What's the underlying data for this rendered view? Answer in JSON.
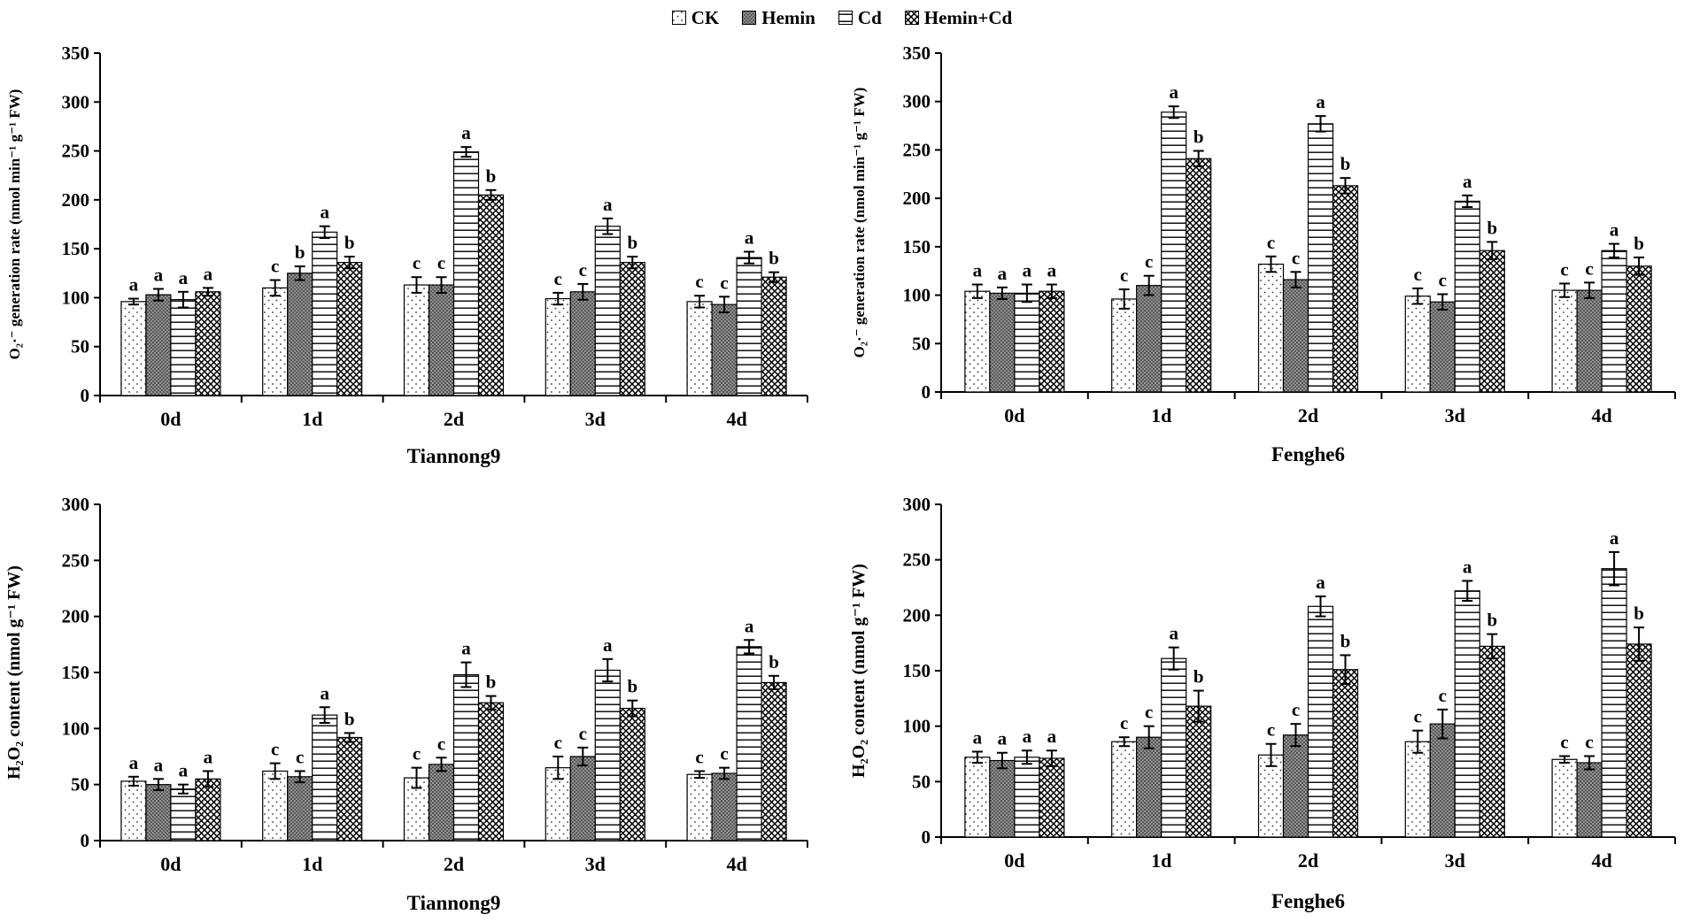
{
  "legend": [
    {
      "label": "CK",
      "pattern": "dots"
    },
    {
      "label": "Hemin",
      "pattern": "dense-dots"
    },
    {
      "label": "Cd",
      "pattern": "horizontal-lines"
    },
    {
      "label": "Hemin+Cd",
      "pattern": "crosshatch"
    }
  ],
  "chart_data": [
    {
      "type": "bar",
      "title": "",
      "xlabel": "Tiannong9",
      "ylabel": "O₂·⁻ generation rate (nmol min⁻¹ g⁻¹ FW)",
      "categories": [
        "0d",
        "1d",
        "2d",
        "3d",
        "4d"
      ],
      "ylim": [
        0,
        350
      ],
      "yticks": [
        0,
        50,
        100,
        150,
        200,
        250,
        300,
        350
      ],
      "series": [
        {
          "name": "CK",
          "values": [
            96,
            110,
            113,
            99,
            96
          ],
          "errors": [
            3,
            8,
            8,
            6,
            6
          ],
          "letters": [
            "a",
            "c",
            "c",
            "c",
            "c"
          ]
        },
        {
          "name": "Hemin",
          "values": [
            103,
            125,
            113,
            106,
            93
          ],
          "errors": [
            6,
            7,
            8,
            8,
            8
          ],
          "letters": [
            "a",
            "b",
            "c",
            "c",
            "c"
          ]
        },
        {
          "name": "Cd",
          "values": [
            98,
            167,
            249,
            173,
            141
          ],
          "errors": [
            8,
            6,
            5,
            8,
            6
          ],
          "letters": [
            "a",
            "a",
            "a",
            "a",
            "a"
          ]
        },
        {
          "name": "Hemin+Cd",
          "values": [
            106,
            136,
            205,
            136,
            121
          ],
          "errors": [
            4,
            6,
            5,
            6,
            5
          ],
          "letters": [
            "a",
            "b",
            "b",
            "b",
            "b"
          ]
        }
      ]
    },
    {
      "type": "bar",
      "title": "",
      "xlabel": "Fenghe6",
      "ylabel": "O₂·⁻ generation rate (nmol min⁻¹ g⁻¹ FW)",
      "categories": [
        "0d",
        "1d",
        "2d",
        "3d",
        "4d"
      ],
      "ylim": [
        0,
        350
      ],
      "yticks": [
        0,
        50,
        100,
        150,
        200,
        250,
        300,
        350
      ],
      "series": [
        {
          "name": "CK",
          "values": [
            104,
            96,
            132,
            99,
            105
          ],
          "errors": [
            7,
            10,
            8,
            8,
            7
          ],
          "letters": [
            "a",
            "c",
            "c",
            "c",
            "c"
          ]
        },
        {
          "name": "Hemin",
          "values": [
            102,
            110,
            116,
            93,
            105
          ],
          "errors": [
            6,
            10,
            8,
            8,
            8
          ],
          "letters": [
            "a",
            "c",
            "c",
            "c",
            "c"
          ]
        },
        {
          "name": "Cd",
          "values": [
            102,
            289,
            277,
            197,
            146
          ],
          "errors": [
            9,
            6,
            8,
            6,
            7
          ],
          "letters": [
            "a",
            "a",
            "a",
            "a",
            "a"
          ]
        },
        {
          "name": "Hemin+Cd",
          "values": [
            104,
            241,
            213,
            146,
            130
          ],
          "errors": [
            7,
            8,
            8,
            9,
            9
          ],
          "letters": [
            "a",
            "b",
            "b",
            "b",
            "b"
          ]
        }
      ]
    },
    {
      "type": "bar",
      "title": "",
      "xlabel": "Tiannong9",
      "ylabel": "H₂O₂ content (nmol g⁻¹ FW)",
      "categories": [
        "0d",
        "1d",
        "2d",
        "3d",
        "4d"
      ],
      "ylim": [
        0,
        300
      ],
      "yticks": [
        0,
        50,
        100,
        150,
        200,
        250,
        300
      ],
      "series": [
        {
          "name": "CK",
          "values": [
            53,
            62,
            56,
            65,
            59
          ],
          "errors": [
            4,
            7,
            9,
            10,
            3
          ],
          "letters": [
            "a",
            "c",
            "c",
            "c",
            "c"
          ]
        },
        {
          "name": "Hemin",
          "values": [
            50,
            57,
            68,
            75,
            60
          ],
          "errors": [
            5,
            5,
            6,
            8,
            5
          ],
          "letters": [
            "a",
            "c",
            "c",
            "c",
            "c"
          ]
        },
        {
          "name": "Cd",
          "values": [
            46,
            112,
            148,
            152,
            173
          ],
          "errors": [
            4,
            7,
            11,
            10,
            6
          ],
          "letters": [
            "a",
            "a",
            "a",
            "a",
            "a"
          ]
        },
        {
          "name": "Hemin+Cd",
          "values": [
            55,
            92,
            123,
            118,
            141
          ],
          "errors": [
            7,
            4,
            6,
            7,
            6
          ],
          "letters": [
            "a",
            "b",
            "b",
            "b",
            "b"
          ]
        }
      ]
    },
    {
      "type": "bar",
      "title": "",
      "xlabel": "Fenghe6",
      "ylabel": "H₂O₂ content (nmol g⁻¹ FW)",
      "categories": [
        "0d",
        "1d",
        "2d",
        "3d",
        "4d"
      ],
      "ylim": [
        0,
        300
      ],
      "yticks": [
        0,
        50,
        100,
        150,
        200,
        250,
        300
      ],
      "series": [
        {
          "name": "CK",
          "values": [
            72,
            86,
            74,
            86,
            70
          ],
          "errors": [
            5,
            4,
            10,
            10,
            3
          ],
          "letters": [
            "a",
            "c",
            "c",
            "c",
            "c"
          ]
        },
        {
          "name": "Hemin",
          "values": [
            69,
            90,
            92,
            102,
            67
          ],
          "errors": [
            7,
            10,
            10,
            13,
            6
          ],
          "letters": [
            "a",
            "c",
            "c",
            "c",
            "c"
          ]
        },
        {
          "name": "Cd",
          "values": [
            72,
            161,
            208,
            222,
            242
          ],
          "errors": [
            6,
            10,
            9,
            9,
            15
          ],
          "letters": [
            "a",
            "a",
            "a",
            "a",
            "a"
          ]
        },
        {
          "name": "Hemin+Cd",
          "values": [
            71,
            118,
            151,
            172,
            174
          ],
          "errors": [
            7,
            14,
            13,
            11,
            15
          ],
          "letters": [
            "a",
            "b",
            "b",
            "b",
            "b"
          ]
        }
      ]
    }
  ]
}
